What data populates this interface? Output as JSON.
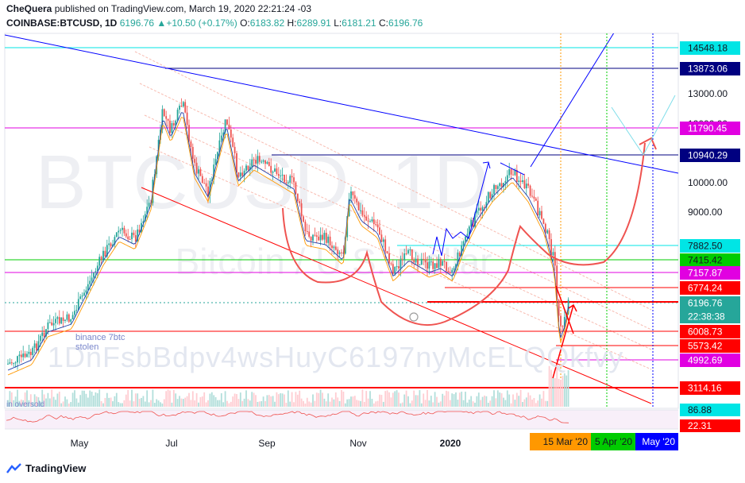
{
  "header": {
    "publisher_line": "CheQuera published on TradingView.com, March 19, 2020 22:21:24 -03",
    "publisher": "CheQuera",
    "published_text": "published on TradingView.com, March 19, 2020 22:21:24 -03",
    "symbol": "COINBASE:BTCUSD, 1D",
    "last": "6196.76",
    "change": "+10.50 (+0.17%)",
    "open_label": "O:",
    "open": "6183.82",
    "high_label": "H:",
    "high": "6289.91",
    "low_label": "L:",
    "low": "6181.21",
    "close_label": "C:",
    "close": "6196.76"
  },
  "watermark": {
    "symbol": "BTCUSD, 1D",
    "name": "Bitcoin / U.S. Dollar",
    "address": "1DnFsbBdpv4wsHuyC6197nyMcELQQkfvy"
  },
  "annotations": {
    "binance": "binance 7btc",
    "stolen": "stolen",
    "oversold": "in oversold"
  },
  "logo_text": "TradingView",
  "colors": {
    "up": "#26a69a",
    "down": "#ef5350",
    "blue_line": "#0000ff",
    "red_line": "#ff0000",
    "magenta": "#e100e1",
    "green": "#00cc00",
    "cyan": "#00e5e5",
    "orange": "#ff9800"
  },
  "chart_data": {
    "type": "candlestick",
    "title": "COINBASE:BTCUSD, 1D",
    "y_axis": {
      "ticks": [
        "13000.00",
        "12000.00",
        "10000.00",
        "9000.00"
      ],
      "scale": "log"
    },
    "x_axis": {
      "ticks": [
        "May",
        "Jul",
        "Sep",
        "Nov",
        "2020"
      ],
      "date_markers": [
        "15 Mar '20",
        "5 Apr '20",
        "May '20"
      ]
    },
    "price_levels": [
      {
        "label": "14548.18",
        "value": 14548.18,
        "color": "#00e5e5",
        "text_color": "#131722"
      },
      {
        "label": "13873.06",
        "value": 13873.06,
        "color": "#000080",
        "text_color": "#ffffff"
      },
      {
        "label": "11790.45",
        "value": 11790.45,
        "color": "#e100e1",
        "text_color": "#ffffff"
      },
      {
        "label": "10940.29",
        "value": 10940.29,
        "color": "#000080",
        "text_color": "#ffffff"
      },
      {
        "label": "7882.50",
        "value": 7882.5,
        "color": "#00e5e5",
        "text_color": "#131722"
      },
      {
        "label": "7415.42",
        "value": 7415.42,
        "color": "#00cc00",
        "text_color": "#131722"
      },
      {
        "label": "7157.87",
        "value": 7157.87,
        "color": "#e100e1",
        "text_color": "#ffffff"
      },
      {
        "label": "6774.24",
        "value": 6774.24,
        "color": "#ff0000",
        "text_color": "#ffffff"
      },
      {
        "label": "6196.76",
        "value": 6196.76,
        "color": "#26a69a",
        "text_color": "#ffffff"
      },
      {
        "label": "22:38:38",
        "value": null,
        "color": "#26a69a",
        "text_color": "#ffffff"
      },
      {
        "label": "6008.73",
        "value": 6008.73,
        "color": "#ff0000",
        "text_color": "#ffffff"
      },
      {
        "label": "5573.42",
        "value": 5573.42,
        "color": "#ff0000",
        "text_color": "#ffffff"
      },
      {
        "label": "4992.69",
        "value": 4992.69,
        "color": "#e100e1",
        "text_color": "#ffffff"
      },
      {
        "label": "3114.16",
        "value": 3114.16,
        "color": "#ff0000",
        "text_color": "#ffffff"
      }
    ],
    "rsi": {
      "labels": [
        "86.88",
        "22.31"
      ],
      "colors": [
        "#00e5e5",
        "#ff0000"
      ]
    }
  }
}
